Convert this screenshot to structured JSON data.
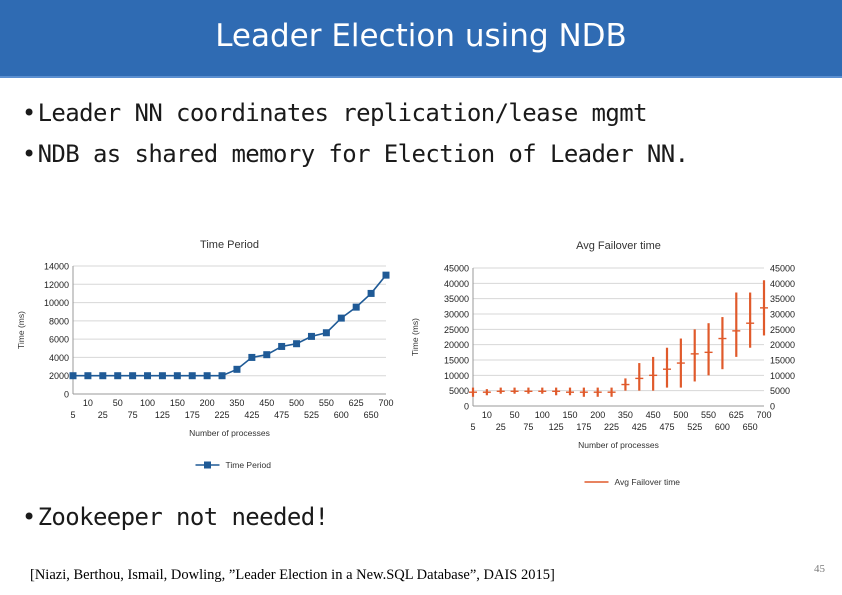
{
  "slide": {
    "title": "Leader Election using NDB",
    "bullets": [
      "Leader NN coordinates replication/lease mgmt",
      "NDB as shared memory for Election of Leader NN.",
      "Zookeeper not needed!"
    ],
    "bullet_glyph": "•",
    "citation": "[Niazi, Berthou, Ismail, Dowling, ”Leader Election in a New.SQL Database”, DAIS 2015]",
    "slide_number": "45",
    "colors": {
      "header": "#2f6bb3",
      "series_left": "#1f5a96",
      "series_right": "#e05a2b"
    }
  },
  "chart_data": [
    {
      "type": "line",
      "title": "Time Period",
      "xlabel": "Number of processes",
      "ylabel": "Time (ms)",
      "ylim": [
        0,
        14000
      ],
      "yticks": [
        "0",
        "2000",
        "4000",
        "6000",
        "8000",
        "10000",
        "12000",
        "14000"
      ],
      "categories": [
        "5",
        "10",
        "25",
        "50",
        "75",
        "100",
        "125",
        "150",
        "175",
        "200",
        "225",
        "350",
        "425",
        "450",
        "475",
        "500",
        "525",
        "550",
        "600",
        "625",
        "650",
        "700"
      ],
      "series": [
        {
          "name": "Time Period",
          "values": [
            2000,
            2000,
            2000,
            2000,
            2000,
            2000,
            2000,
            2000,
            2000,
            2000,
            2000,
            2700,
            4000,
            4300,
            5200,
            5500,
            6300,
            6700,
            8300,
            9500,
            11000,
            13000
          ]
        }
      ],
      "grid": true,
      "legend": "bottom"
    },
    {
      "type": "line",
      "title": "Avg Failover time",
      "xlabel": "Number of processes",
      "ylabel": "Time (ms)",
      "ylim": [
        0,
        45000
      ],
      "yticks": [
        "0",
        "5000",
        "10000",
        "15000",
        "20000",
        "25000",
        "30000",
        "35000",
        "40000",
        "45000"
      ],
      "categories": [
        "5",
        "10",
        "25",
        "50",
        "75",
        "100",
        "125",
        "150",
        "175",
        "200",
        "225",
        "350",
        "425",
        "450",
        "475",
        "500",
        "525",
        "550",
        "600",
        "625",
        "650",
        "700"
      ],
      "series": [
        {
          "name": "Avg Failover time",
          "values": [
            4500,
            4500,
            4800,
            4800,
            4800,
            4800,
            4800,
            4500,
            4500,
            4500,
            4500,
            7000,
            9000,
            10000,
            12000,
            14000,
            17000,
            17500,
            22000,
            24500,
            27000,
            32000
          ],
          "low": [
            3000,
            3500,
            4000,
            4000,
            4000,
            4000,
            3500,
            3500,
            3000,
            3000,
            3000,
            5000,
            5000,
            5000,
            6000,
            6000,
            8000,
            10000,
            12000,
            16000,
            19000,
            23000
          ],
          "high": [
            6000,
            5500,
            6000,
            6000,
            6000,
            6000,
            6000,
            6000,
            6000,
            6000,
            6000,
            9000,
            14000,
            16000,
            19000,
            22000,
            25000,
            27000,
            29000,
            37000,
            37000,
            41000
          ]
        }
      ],
      "grid": true,
      "legend": "bottom",
      "secondary_yticks": [
        "0",
        "5000",
        "10000",
        "15000",
        "20000",
        "25000",
        "30000",
        "35000",
        "40000",
        "45000"
      ]
    }
  ]
}
